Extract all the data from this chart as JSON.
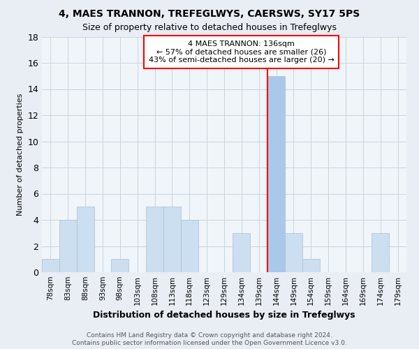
{
  "title1": "4, MAES TRANNON, TREFEGLWYS, CAERSWS, SY17 5PS",
  "title2": "Size of property relative to detached houses in Trefeglwys",
  "xlabel": "Distribution of detached houses by size in Trefeglwys",
  "ylabel": "Number of detached properties",
  "categories": [
    "78sqm",
    "83sqm",
    "88sqm",
    "93sqm",
    "98sqm",
    "103sqm",
    "108sqm",
    "113sqm",
    "118sqm",
    "123sqm",
    "129sqm",
    "134sqm",
    "139sqm",
    "144sqm",
    "149sqm",
    "154sqm",
    "159sqm",
    "164sqm",
    "169sqm",
    "174sqm",
    "179sqm"
  ],
  "values": [
    1,
    4,
    5,
    0,
    1,
    0,
    5,
    5,
    4,
    0,
    0,
    3,
    0,
    15,
    3,
    1,
    0,
    0,
    0,
    3,
    0
  ],
  "bar_color": "#ccdff0",
  "bar_edgecolor": "#aabfcf",
  "highlight_bar_index": 13,
  "highlight_bar_color": "#aac8e8",
  "red_line_index": 12,
  "ylim": [
    0,
    18
  ],
  "yticks": [
    0,
    2,
    4,
    6,
    8,
    10,
    12,
    14,
    16,
    18
  ],
  "annotation_text": "4 MAES TRANNON: 136sqm\n← 57% of detached houses are smaller (26)\n43% of semi-detached houses are larger (20) →",
  "footer1": "Contains HM Land Registry data © Crown copyright and database right 2024.",
  "footer2": "Contains public sector information licensed under the Open Government Licence v3.0.",
  "background_color": "#e8eef4",
  "plot_background": "#f0f5fa",
  "grid_color": "#c8d4e0",
  "title1_fontsize": 10,
  "title2_fontsize": 9
}
